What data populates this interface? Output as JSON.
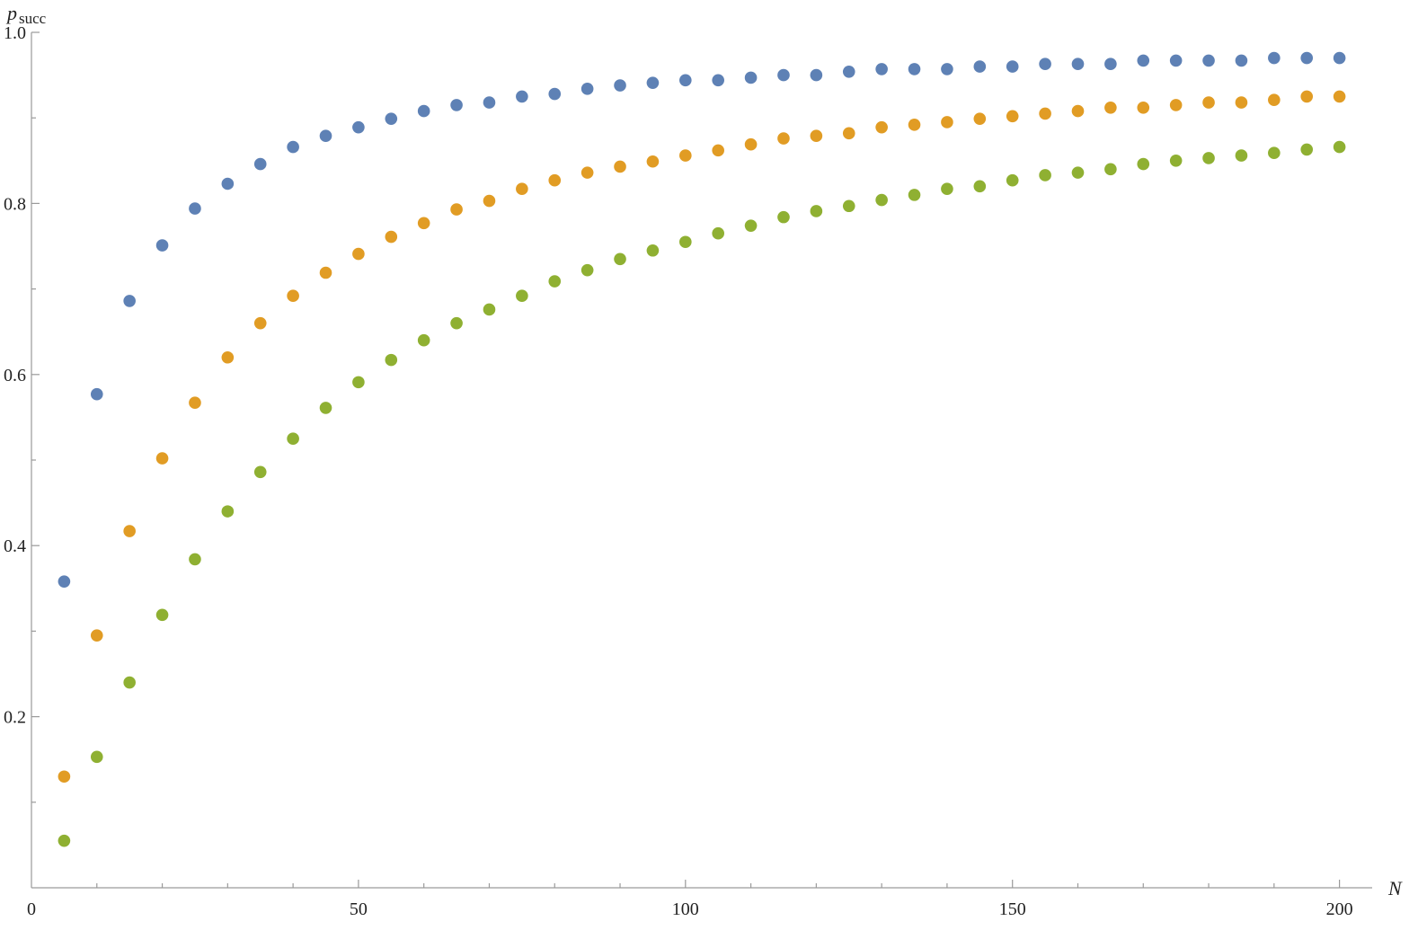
{
  "chart_data": {
    "type": "scatter",
    "xlabel": "N",
    "ylabel": {
      "main": "p",
      "sub": "succ"
    },
    "xlim": [
      0,
      205
    ],
    "ylim": [
      0,
      1.0
    ],
    "x_ticks": [
      0,
      50,
      100,
      150,
      200
    ],
    "x_tick_labels": [
      "0",
      "50",
      "100",
      "150",
      "200"
    ],
    "x_minor_step": 10,
    "y_ticks": [
      0.2,
      0.4,
      0.6,
      0.8,
      1.0
    ],
    "y_tick_labels": [
      "0.2",
      "0.4",
      "0.6",
      "0.8",
      "1.0"
    ],
    "y_minor_step": 0.1,
    "grid": false,
    "x": [
      5,
      10,
      15,
      20,
      25,
      30,
      35,
      40,
      45,
      50,
      55,
      60,
      65,
      70,
      75,
      80,
      85,
      90,
      95,
      100,
      105,
      110,
      115,
      120,
      125,
      130,
      135,
      140,
      145,
      150,
      155,
      160,
      165,
      170,
      175,
      180,
      185,
      190,
      195,
      200
    ],
    "series": [
      {
        "color": "#5e81b5",
        "values": [
          0.358,
          0.577,
          0.686,
          0.751,
          0.794,
          0.823,
          0.846,
          0.866,
          0.879,
          0.889,
          0.899,
          0.908,
          0.915,
          0.918,
          0.925,
          0.928,
          0.934,
          0.938,
          0.941,
          0.944,
          0.944,
          0.947,
          0.95,
          0.95,
          0.954,
          0.957,
          0.957,
          0.957,
          0.96,
          0.96,
          0.963,
          0.963,
          0.963,
          0.967,
          0.967,
          0.967,
          0.967,
          0.97,
          0.97,
          0.97
        ]
      },
      {
        "color": "#e19c24",
        "values": [
          0.13,
          0.295,
          0.417,
          0.502,
          0.567,
          0.62,
          0.66,
          0.692,
          0.719,
          0.741,
          0.761,
          0.777,
          0.793,
          0.803,
          0.817,
          0.827,
          0.836,
          0.843,
          0.849,
          0.856,
          0.862,
          0.869,
          0.876,
          0.879,
          0.882,
          0.889,
          0.892,
          0.895,
          0.899,
          0.902,
          0.905,
          0.908,
          0.912,
          0.912,
          0.915,
          0.918,
          0.918,
          0.921,
          0.925,
          0.925
        ]
      },
      {
        "color": "#8fb032",
        "values": [
          0.055,
          0.153,
          0.24,
          0.319,
          0.384,
          0.44,
          0.486,
          0.525,
          0.561,
          0.591,
          0.617,
          0.64,
          0.66,
          0.676,
          0.692,
          0.709,
          0.722,
          0.735,
          0.745,
          0.755,
          0.765,
          0.774,
          0.784,
          0.791,
          0.797,
          0.804,
          0.81,
          0.817,
          0.82,
          0.827,
          0.833,
          0.836,
          0.84,
          0.846,
          0.85,
          0.853,
          0.856,
          0.859,
          0.863,
          0.866
        ]
      }
    ]
  }
}
